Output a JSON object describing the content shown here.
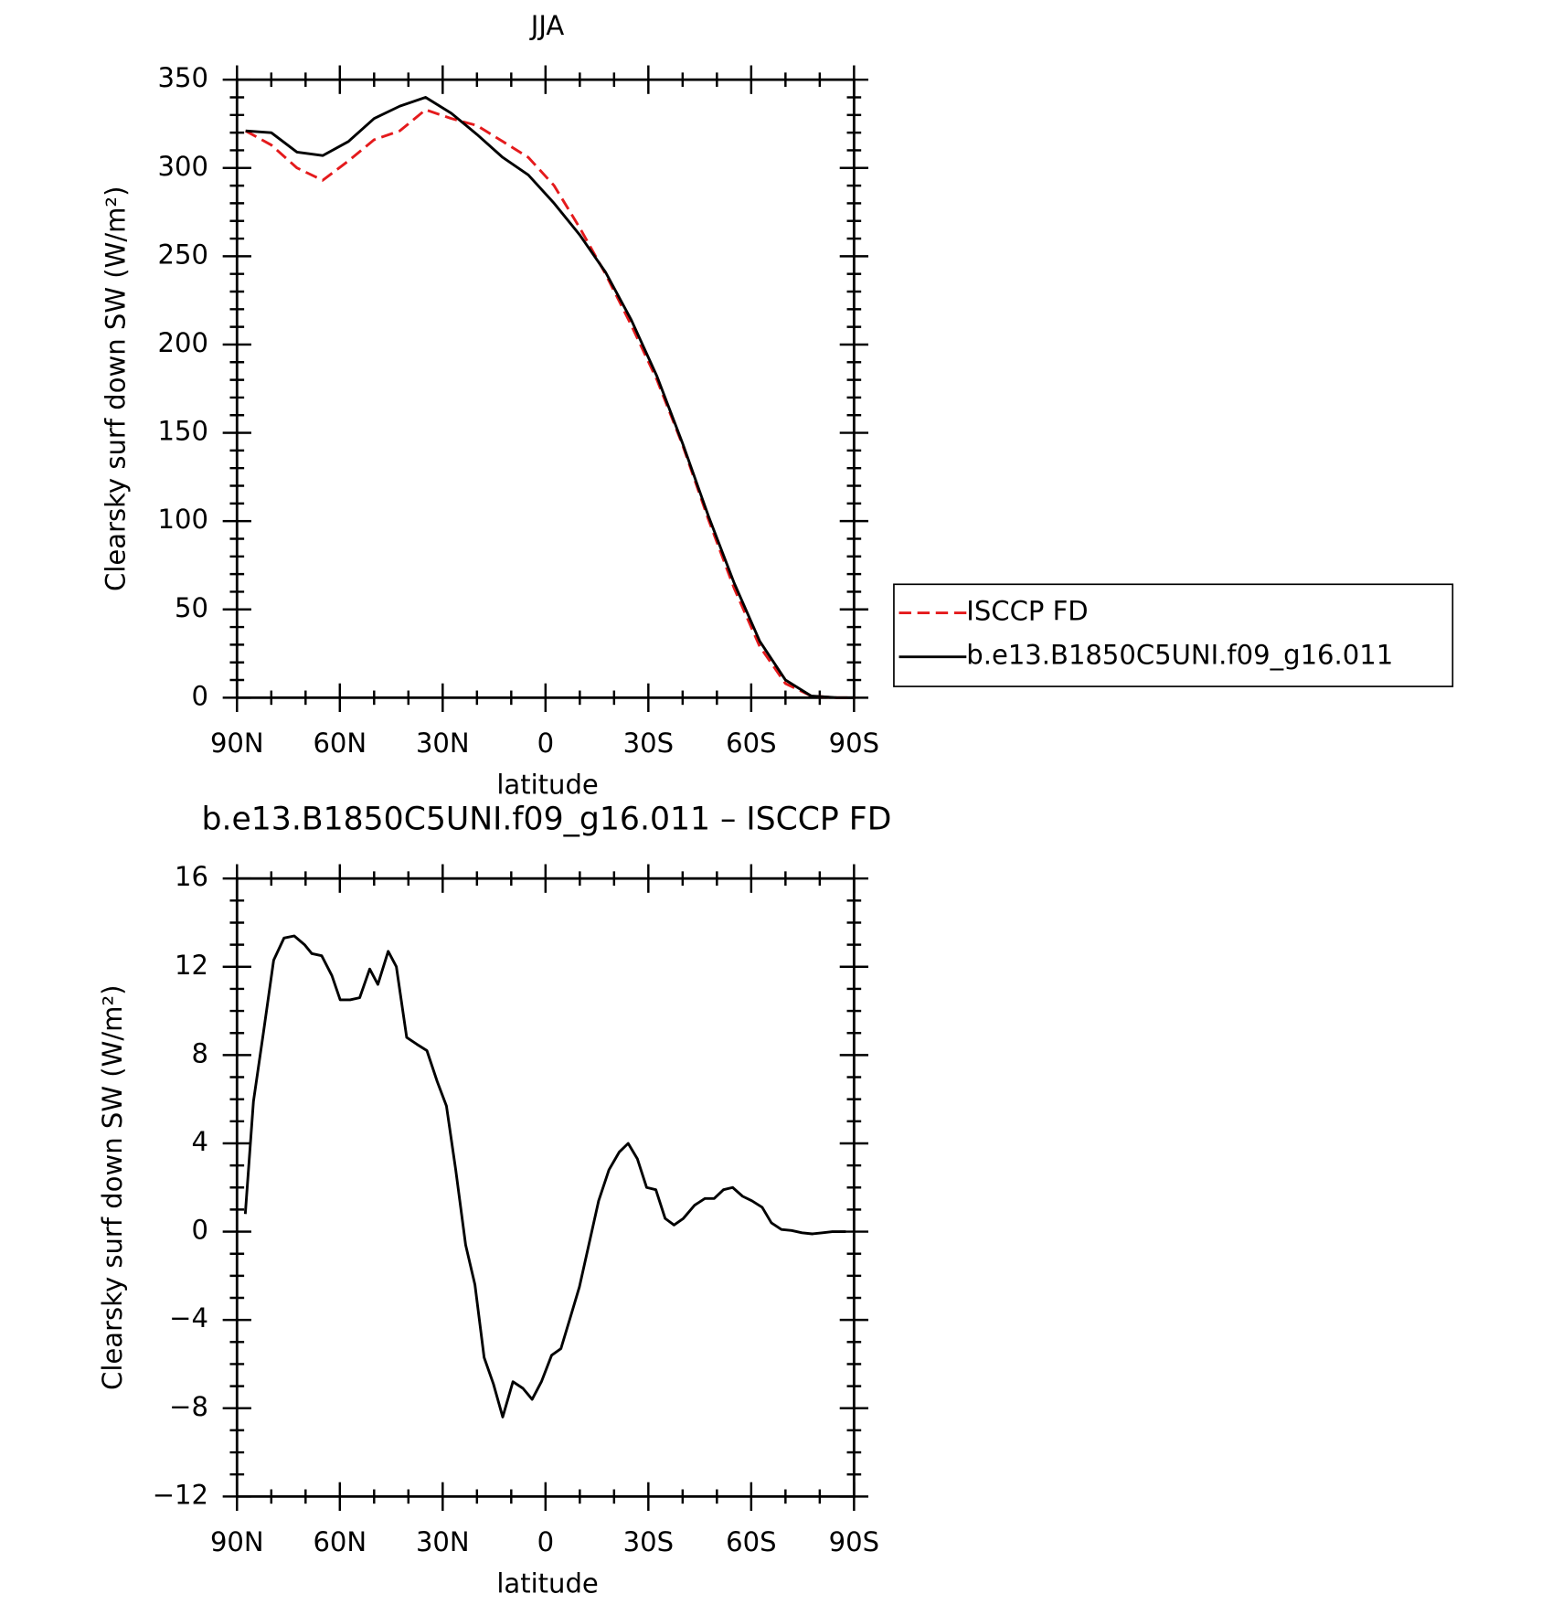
{
  "chart_data": [
    {
      "type": "line",
      "title": "JJA",
      "xlabel": "latitude",
      "ylabel": "Clearsky surf down SW (W/m²)",
      "xlim": [
        90,
        -90
      ],
      "ylim": [
        0,
        350
      ],
      "xticks": [
        {
          "value": 90,
          "label": "90N"
        },
        {
          "value": 60,
          "label": "60N"
        },
        {
          "value": 30,
          "label": "30N"
        },
        0,
        {
          "value": -30,
          "label": "30S"
        },
        {
          "value": -60,
          "label": "60S"
        },
        {
          "value": -90,
          "label": "90S"
        }
      ],
      "yticks": [
        0,
        50,
        100,
        150,
        200,
        250,
        300,
        350
      ],
      "legend": "right",
      "x": [
        87.5,
        80,
        72.5,
        65,
        57.5,
        50,
        42.5,
        35,
        27.5,
        20,
        12.5,
        5,
        -2.5,
        -10,
        -17.5,
        -25,
        -32.5,
        -40,
        -47.5,
        -55,
        -62.5,
        -70,
        -77.5,
        -85,
        -90
      ],
      "series": [
        {
          "name": "ISCCP FD",
          "color": "#e41a1c",
          "dash": true,
          "values": [
            321,
            313,
            300,
            293,
            304,
            316,
            321,
            333,
            328,
            324,
            315,
            306,
            290,
            266,
            240,
            211,
            180,
            143,
            101,
            62,
            29,
            8,
            1,
            0,
            0
          ]
        },
        {
          "name": "b.e13.B1850C5UNI.f09_g16.011",
          "color": "#000000",
          "dash": false,
          "values": [
            321,
            320,
            309,
            307,
            315,
            328,
            335,
            340,
            331,
            319,
            306,
            296,
            280,
            262,
            241,
            214,
            182,
            144,
            103,
            65,
            32,
            10,
            1,
            0,
            0
          ]
        }
      ]
    },
    {
      "type": "line",
      "title": "b.e13.B1850C5UNI.f09_g16.011 – ISCCP FD",
      "xlabel": "latitude",
      "ylabel": "Clearsky surf down SW (W/m²)",
      "xlim": [
        90,
        -90
      ],
      "ylim": [
        -12,
        16
      ],
      "xticks": [
        {
          "value": 90,
          "label": "90N"
        },
        {
          "value": 60,
          "label": "60N"
        },
        {
          "value": 30,
          "label": "30N"
        },
        0,
        {
          "value": -30,
          "label": "30S"
        },
        {
          "value": -60,
          "label": "60S"
        },
        {
          "value": -90,
          "label": "90S"
        }
      ],
      "yticks": [
        {
          "value": -12,
          "label": "−12"
        },
        {
          "value": -8,
          "label": "−8"
        },
        {
          "value": -4,
          "label": "−4"
        },
        0,
        4,
        8,
        12,
        16
      ],
      "color": "#000000",
      "x": [
        87.6,
        85.2,
        82.3,
        79.3,
        76.3,
        73.3,
        70.3,
        68.2,
        65.3,
        62.3,
        59.9,
        57,
        54.2,
        51.3,
        48.9,
        45.9,
        43.5,
        40.5,
        37.6,
        34.6,
        31.6,
        28.9,
        26.2,
        23.3,
        20.6,
        17.9,
        15.2,
        12.5,
        9.5,
        6.6,
        3.9,
        1.2,
        -1.8,
        -4.5,
        -7.2,
        -9.9,
        -12.5,
        -15.5,
        -18.5,
        -21.5,
        -24.1,
        -26.8,
        -29.5,
        -32.2,
        -34.9,
        -37.5,
        -40.2,
        -43.5,
        -46.5,
        -49.2,
        -51.9,
        -54.6,
        -57.5,
        -60.2,
        -63.2,
        -65.9,
        -68.8,
        -71.8,
        -74.8,
        -77.8,
        -80.8,
        -83.7,
        -87.6
      ],
      "values": [
        0.8,
        5.9,
        9,
        12.3,
        13.3,
        13.4,
        13,
        12.6,
        12.5,
        11.6,
        10.5,
        10.5,
        10.6,
        11.9,
        11.2,
        12.7,
        12,
        8.8,
        8.5,
        8.2,
        6.8,
        5.7,
        2.8,
        -0.6,
        -2.4,
        -5.7,
        -6.9,
        -8.4,
        -6.8,
        -7.1,
        -7.6,
        -6.8,
        -5.6,
        -5.3,
        -3.9,
        -2.5,
        -0.7,
        1.4,
        2.8,
        3.6,
        4,
        3.3,
        2,
        1.9,
        0.6,
        0.3,
        0.6,
        1.2,
        1.5,
        1.5,
        1.9,
        2,
        1.6,
        1.4,
        1.1,
        0.4,
        0.1,
        0.05,
        -0.05,
        -0.1,
        -0.05,
        0,
        0
      ]
    }
  ]
}
